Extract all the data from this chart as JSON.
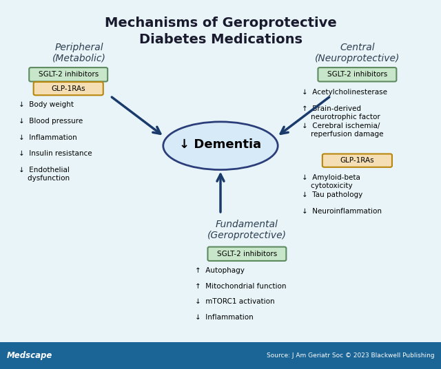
{
  "title": "Mechanisms of Geroprotective\nDiabetes Medications",
  "bg_color": "#e8f4f8",
  "title_color": "#1a1a2e",
  "footer_bg": "#1a6496",
  "footer_left": "Medscape",
  "footer_right": "Source: J Am Geriatr Soc © 2023 Blackwell Publishing",
  "dementia_label": "↓ Dementia",
  "dementia_ellipse_color": "#d6eaf8",
  "dementia_border_color": "#2c3e7a",
  "peripheral_title": "Peripheral\n(Metabolic)",
  "central_title": "Central\n(Neuroprotective)",
  "fundamental_title": "Fundamental\n(Geroprotective)",
  "peripheral_sglt2_label": "SGLT-2 inhibitors",
  "peripheral_sglt2_box_color": "#c8e6c9",
  "peripheral_sglt2_border": "#5d8a5e",
  "peripheral_glp1_label": "GLP-1RAs",
  "peripheral_glp1_box_color": "#f5deb3",
  "peripheral_glp1_border": "#b8860b",
  "peripheral_items": [
    "↓  Body weight",
    "↓  Blood pressure",
    "↓  Inflammation",
    "↓  Insulin resistance",
    "↓  Endothelial\n    dysfunction"
  ],
  "central_sglt2_label": "SGLT-2 inhibitors",
  "central_sglt2_box_color": "#c8e6c9",
  "central_sglt2_border": "#5d8a5e",
  "central_sglt2_items": [
    "↓  Acetylcholinesterase",
    "↑  Brain-derived\n    neurotrophic factor",
    "↓  Cerebral ischemia/\n    reperfusion damage"
  ],
  "central_glp1_label": "GLP-1RAs",
  "central_glp1_box_color": "#f5deb3",
  "central_glp1_border": "#b8860b",
  "central_glp1_items": [
    "↓  Amyloid-beta\n    cytotoxicity",
    "↓  Tau pathology",
    "↓  Neuroinflammation"
  ],
  "fundamental_sglt2_label": "SGLT-2 inhibitors",
  "fundamental_sglt2_box_color": "#c8e6c9",
  "fundamental_sglt2_border": "#5d8a5e",
  "fundamental_items": [
    "↑  Autophagy",
    "↑  Mitochondrial function",
    "↓  mTORC1 activation",
    "↓  Inflammation"
  ],
  "arrow_color": "#1a3a6b"
}
